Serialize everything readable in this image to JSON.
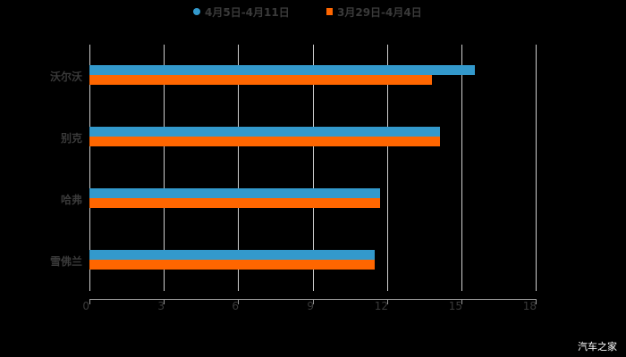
{
  "chart_data": {
    "type": "bar",
    "orientation": "horizontal",
    "title": "",
    "xlabel": "",
    "ylabel": "",
    "categories": [
      "沃尔沃",
      "别克",
      "哈弗",
      "雪佛兰"
    ],
    "series": [
      {
        "name": "4月5日-4月11日",
        "color": "#3399CC",
        "marker": "circle",
        "values": [
          15.5,
          14.1,
          11.7,
          11.5
        ]
      },
      {
        "name": "3月29日-4月4日",
        "color": "#FF6600",
        "marker": "square",
        "values": [
          13.8,
          14.1,
          11.7,
          11.5
        ]
      }
    ],
    "xlim": [
      0,
      18
    ],
    "xticks": [
      "0",
      "3",
      "6",
      "9",
      "12",
      "15",
      "18"
    ],
    "grid": "vertical",
    "legend_position": "top"
  },
  "legend": {
    "items": [
      {
        "label": "4月5日-4月11日",
        "color": "#3399CC"
      },
      {
        "label": "3月29日-4月4日",
        "color": "#FF6600"
      }
    ]
  },
  "axis": {
    "ticks": [
      "0",
      "3",
      "6",
      "9",
      "12",
      "15",
      "18"
    ]
  },
  "categories": [
    "沃尔沃",
    "别克",
    "哈弗",
    "雪佛兰"
  ],
  "watermark": "汽车之家"
}
